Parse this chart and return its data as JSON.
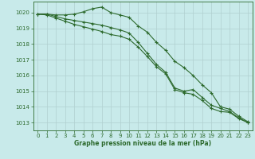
{
  "xlabel": "Graphe pression niveau de la mer (hPa)",
  "bg_color": "#c8eaea",
  "line_color": "#2d6a2d",
  "grid_color": "#b0d0d0",
  "xlim": [
    -0.5,
    23.5
  ],
  "ylim": [
    1012.5,
    1020.7
  ],
  "yticks": [
    1013,
    1014,
    1015,
    1016,
    1017,
    1018,
    1019,
    1020
  ],
  "xticks": [
    0,
    1,
    2,
    3,
    4,
    5,
    6,
    7,
    8,
    9,
    10,
    11,
    12,
    13,
    14,
    15,
    16,
    17,
    18,
    19,
    20,
    21,
    22,
    23
  ],
  "series1": {
    "x": [
      0,
      1,
      2,
      3,
      4,
      5,
      6,
      7,
      8,
      9,
      10,
      11,
      12,
      13,
      14,
      15,
      16,
      17,
      18,
      19,
      20,
      21,
      22,
      23
    ],
    "y": [
      1019.9,
      1019.9,
      1019.85,
      1019.85,
      1019.9,
      1020.05,
      1020.25,
      1020.35,
      1020.0,
      1019.85,
      1019.7,
      1019.15,
      1018.75,
      1018.1,
      1017.6,
      1016.9,
      1016.5,
      1016.0,
      1015.4,
      1014.9,
      1014.0,
      1013.85,
      1013.4,
      1013.05
    ]
  },
  "series2": {
    "x": [
      0,
      1,
      2,
      3,
      4,
      5,
      6,
      7,
      8,
      9,
      10,
      11,
      12,
      13,
      14,
      15,
      16,
      17,
      18,
      19,
      20,
      21,
      22,
      23
    ],
    "y": [
      1019.9,
      1019.9,
      1019.75,
      1019.6,
      1019.5,
      1019.4,
      1019.3,
      1019.2,
      1019.05,
      1018.9,
      1018.7,
      1018.1,
      1017.4,
      1016.7,
      1016.2,
      1015.2,
      1015.0,
      1015.1,
      1014.6,
      1014.1,
      1013.9,
      1013.7,
      1013.3,
      1013.0
    ]
  },
  "series3": {
    "x": [
      0,
      1,
      2,
      3,
      4,
      5,
      6,
      7,
      8,
      9,
      10,
      11,
      12,
      13,
      14,
      15,
      16,
      17,
      18,
      19,
      20,
      21,
      22,
      23
    ],
    "y": [
      1019.9,
      1019.85,
      1019.65,
      1019.45,
      1019.25,
      1019.1,
      1018.95,
      1018.8,
      1018.6,
      1018.5,
      1018.3,
      1017.8,
      1017.2,
      1016.55,
      1016.1,
      1015.1,
      1014.9,
      1014.8,
      1014.4,
      1013.9,
      1013.7,
      1013.65,
      1013.25,
      1013.0
    ]
  }
}
